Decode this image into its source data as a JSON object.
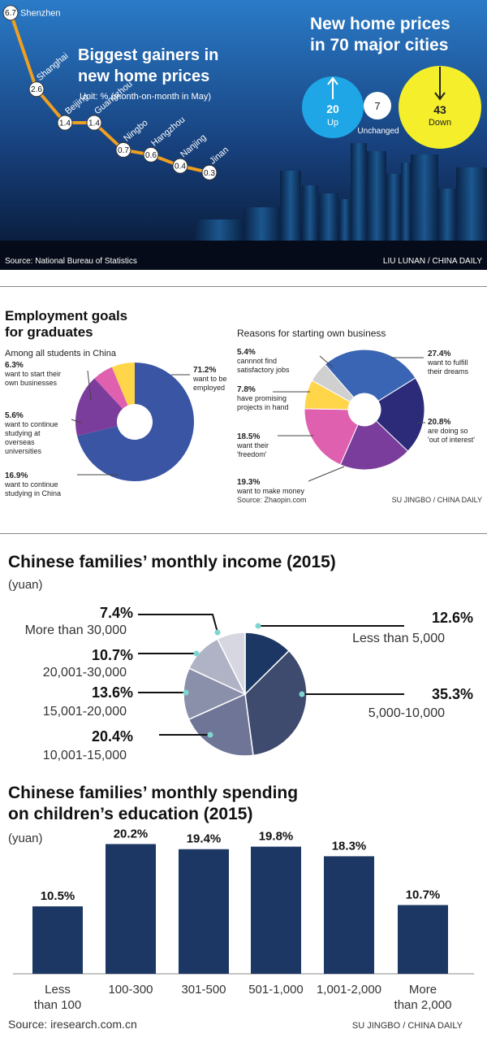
{
  "panel1": {
    "title_line1": "Biggest gainers in",
    "title_line2": "new home prices",
    "unit": "Unit: % (month-on-month in May)",
    "right_title_line1": "New home prices",
    "right_title_line2": "in 70 major cities",
    "circles": [
      {
        "value": "20",
        "label": "Up",
        "color": "#1ea6e6"
      },
      {
        "value": "7",
        "label": "Unchanged",
        "color": "#ffffff"
      },
      {
        "value": "43",
        "label": "Down",
        "color": "#f4ef2a"
      }
    ],
    "source": "Source: National Bureau of Statistics",
    "credit": "LIU LUNAN / CHINA DAILY",
    "chart_data": {
      "type": "line",
      "title": "Biggest gainers in new home prices",
      "unit": "Unit: % (month-on-month in May)",
      "categories": [
        "Shenzhen",
        "Shanghai",
        "Beijing",
        "Guangzhou",
        "Ningbo",
        "Hangzhou",
        "Nanjing",
        "Jinan"
      ],
      "values": [
        6.7,
        2.6,
        1.4,
        1.4,
        0.7,
        0.6,
        0.4,
        0.3
      ],
      "value_labels": [
        "6.7",
        "2.6",
        "1.4",
        "1.4",
        "0.7",
        "0.6",
        "0.4",
        "0.3"
      ],
      "line_color": "#f0a020"
    }
  },
  "panel2": {
    "title_line1": "Employment goals",
    "title_line2": "for graduates",
    "subtitle": "Among all students in China",
    "right_title": "Reasons for starting own business",
    "source": "Source: Zhaopin.com",
    "credit": "SU JINGBO / CHINA DAILY",
    "chart_data": [
      {
        "type": "pie",
        "title": "Employment goals for graduates",
        "slices": [
          {
            "pct": "71.2%",
            "value": 71.2,
            "label1": "want to be",
            "label2": "employed",
            "label3": "",
            "color": "#3a55a4"
          },
          {
            "pct": "16.9%",
            "value": 16.9,
            "label1": "want to continue",
            "label2": "studying in China",
            "label3": "",
            "color": "#7b3d9c"
          },
          {
            "pct": "5.6%",
            "value": 5.6,
            "label1": "want to continue",
            "label2": "studying at",
            "label3": "overseas",
            "label4": "universities",
            "color": "#e060b0"
          },
          {
            "pct": "6.3%",
            "value": 6.3,
            "label1": "want to start their",
            "label2": "own businesses",
            "label3": "",
            "color": "#ffd54a"
          }
        ]
      },
      {
        "type": "pie",
        "title": "Reasons for starting own business",
        "slices": [
          {
            "pct": "27.4%",
            "value": 27.4,
            "label1": "want to fulfill",
            "label2": "their dreams",
            "color": "#3a65b4"
          },
          {
            "pct": "20.8%",
            "value": 20.8,
            "label1": "are doing so",
            "label2": "'out of interest'",
            "color": "#2b2b7a"
          },
          {
            "pct": "19.3%",
            "value": 19.3,
            "label1": "want to make  money",
            "label2": "",
            "color": "#7b3d9c"
          },
          {
            "pct": "18.5%",
            "value": 18.5,
            "label1": "want their",
            "label2": "'freedom'",
            "color": "#e060b0"
          },
          {
            "pct": "7.8%",
            "value": 7.8,
            "label1": "have promising",
            "label2": "projects in hand",
            "color": "#ffd54a"
          },
          {
            "pct": "5.4%",
            "value": 5.4,
            "label1": "cannnot find",
            "label2": "satisfactory jobs",
            "color": "#d0d0d0"
          }
        ]
      }
    ]
  },
  "panel3": {
    "title": "Chinese families’ monthly income (2015)",
    "unit": "(yuan)",
    "chart_data": {
      "type": "pie",
      "title": "Chinese families’ monthly income (2015)",
      "slices": [
        {
          "pct": "12.6%",
          "value": 12.6,
          "label": "Less than 5,000",
          "color": "#1c3763"
        },
        {
          "pct": "35.3%",
          "value": 35.3,
          "label": "5,000-10,000",
          "color": "#3e4a6e"
        },
        {
          "pct": "20.4%",
          "value": 20.4,
          "label": "10,001-15,000",
          "color": "#6e7596"
        },
        {
          "pct": "13.6%",
          "value": 13.6,
          "label": "15,001-20,000",
          "color": "#8b90aa"
        },
        {
          "pct": "10.7%",
          "value": 10.7,
          "label": "20,001-30,000",
          "color": "#b0b3c6"
        },
        {
          "pct": "7.4%",
          "value": 7.4,
          "label": "More than 30,000",
          "color": "#d6d7e0"
        }
      ]
    }
  },
  "panel4": {
    "title_line1": "Chinese families’ monthly spending",
    "title_line2": "on children’s education (2015)",
    "unit": "(yuan)",
    "source": "Source: iresearch.com.cn",
    "credit": "SU JINGBO / CHINA DAILY",
    "chart_data": {
      "type": "bar",
      "title": "Chinese families’ monthly spending on children’s education (2015)",
      "categories": [
        [
          "Less",
          "than 100"
        ],
        [
          "100-300"
        ],
        [
          "301-500"
        ],
        [
          "501-1,000"
        ],
        [
          "1,001-2,000"
        ],
        [
          "More",
          "than 2,000"
        ]
      ],
      "values": [
        10.5,
        20.2,
        19.4,
        19.8,
        18.3,
        10.7
      ],
      "value_labels": [
        "10.5%",
        "20.2%",
        "19.4%",
        "19.8%",
        "18.3%",
        "10.7%"
      ],
      "bar_color": "#1c3763"
    }
  }
}
